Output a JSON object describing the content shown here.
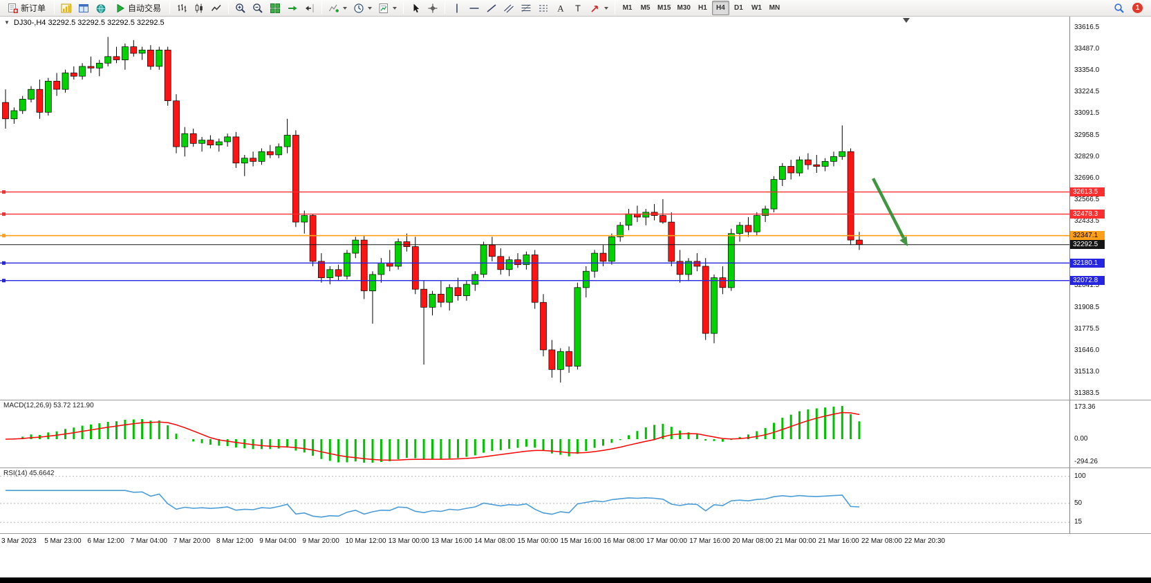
{
  "toolbar": {
    "notification_count": "1",
    "timeframes": [
      "M1",
      "M5",
      "M15",
      "M30",
      "H1",
      "H4",
      "D1",
      "W1",
      "MN"
    ],
    "active_timeframe": "H4",
    "right_icons": [
      "search-icon"
    ],
    "items": [
      {
        "type": "labeled",
        "name": "new-order-button",
        "icon": "new-order-icon",
        "label": "新订单"
      },
      {
        "type": "sep"
      },
      {
        "type": "icon",
        "name": "new-chart-button",
        "icon": "new-chart-icon"
      },
      {
        "type": "icon",
        "name": "profiles-button",
        "icon": "profiles-icon"
      },
      {
        "type": "icon",
        "name": "community-button",
        "icon": "community-icon"
      },
      {
        "type": "labeled",
        "name": "auto-trading-button",
        "icon": "play-icon",
        "label": "自动交易"
      },
      {
        "type": "sep"
      },
      {
        "type": "icon",
        "name": "bar-chart-button",
        "icon": "bar-chart-icon"
      },
      {
        "type": "icon",
        "name": "candlestick-button",
        "icon": "candlestick-icon"
      },
      {
        "type": "icon",
        "name": "line-chart-button",
        "icon": "line-chart-icon"
      },
      {
        "type": "sep"
      },
      {
        "type": "icon",
        "name": "zoom-in-button",
        "icon": "zoom-in-icon"
      },
      {
        "type": "icon",
        "name": "zoom-out-button",
        "icon": "zoom-out-icon"
      },
      {
        "type": "icon",
        "name": "tile-windows-button",
        "icon": "tile-windows-icon"
      },
      {
        "type": "icon",
        "name": "auto-scroll-button",
        "icon": "auto-scroll-icon"
      },
      {
        "type": "icon",
        "name": "chart-shift-button",
        "icon": "chart-shift-icon"
      },
      {
        "type": "sep"
      },
      {
        "type": "dropdown",
        "name": "indicators-button",
        "icon": "indicators-icon"
      },
      {
        "type": "dropdown",
        "name": "periods-button",
        "icon": "clock-icon"
      },
      {
        "type": "dropdown",
        "name": "templates-button",
        "icon": "templates-icon"
      },
      {
        "type": "sep"
      },
      {
        "type": "icon",
        "name": "cursor-button",
        "icon": "cursor-icon"
      },
      {
        "type": "icon",
        "name": "crosshair-button",
        "icon": "crosshair-icon"
      },
      {
        "type": "sep"
      },
      {
        "type": "icon",
        "name": "vertical-line-button",
        "icon": "vertical-line-icon"
      },
      {
        "type": "icon",
        "name": "horizontal-line-button",
        "icon": "horizontal-line-icon"
      },
      {
        "type": "icon",
        "name": "trendline-button",
        "icon": "trendline-icon"
      },
      {
        "type": "icon",
        "name": "channel-button",
        "icon": "channel-icon"
      },
      {
        "type": "icon",
        "name": "fibonacci-button",
        "icon": "fibonacci-icon"
      },
      {
        "type": "icon",
        "name": "levels-button",
        "icon": "levels-icon"
      },
      {
        "type": "icon",
        "name": "text-button",
        "icon": "text-icon"
      },
      {
        "type": "icon",
        "name": "label-button",
        "icon": "label-icon"
      },
      {
        "type": "dropdown",
        "name": "arrows-button",
        "icon": "arrow-icon"
      },
      {
        "type": "sep"
      },
      {
        "type": "timeframes"
      }
    ]
  },
  "chart": {
    "title": "DJ30-,H4 32292.5 32292.5 32292.5 32292.5",
    "symbol": "DJ30-",
    "period": "H4",
    "price_axis_labels": [
      "33616.5",
      "33487.0",
      "33354.0",
      "33224.5",
      "33091.5",
      "32958.5",
      "32829.0",
      "32696.0",
      "32566.5",
      "32433.5",
      "32041.5",
      "31908.5",
      "31775.5",
      "31646.0",
      "31513.0",
      "31383.5"
    ],
    "levels": [
      {
        "value": "32613.5",
        "price": 32613.5,
        "color": "#fb2f2f",
        "tag_fg": "#ffffff",
        "width": 1.4,
        "handle": true
      },
      {
        "value": "32478.3",
        "price": 32478.3,
        "color": "#fb2f2f",
        "tag_fg": "#ffffff",
        "width": 1.4,
        "handle": true
      },
      {
        "value": "32347.1",
        "price": 32347.1,
        "color": "#ff9f1a",
        "tag_fg": "#000000",
        "width": 1.6,
        "handle": true
      },
      {
        "value": "32292.5",
        "price": 32292.5,
        "color": "#161616",
        "tag_fg": "#ffffff",
        "width": 1.0,
        "handle": false
      },
      {
        "value": "32180.1",
        "price": 32180.1,
        "color": "#2525e0",
        "tag_fg": "#ffffff",
        "width": 1.4,
        "handle": true
      },
      {
        "value": "32072.8",
        "price": 32072.8,
        "color": "#2525e0",
        "tag_fg": "#ffffff",
        "width": 1.4,
        "handle": true
      }
    ],
    "arrow_color": "#2e8b2e"
  },
  "chart_data": {
    "type": "candlestick",
    "symbol": "DJ30-",
    "timeframe": "H4",
    "up_color": "#00d300",
    "down_color": "#ff1414",
    "price_range": [
      31383.5,
      33616.5
    ],
    "candles": [
      [
        33160,
        33240,
        33000,
        33060
      ],
      [
        33060,
        33130,
        33030,
        33110
      ],
      [
        33110,
        33200,
        33090,
        33180
      ],
      [
        33180,
        33260,
        33160,
        33240
      ],
      [
        33240,
        33300,
        33060,
        33100
      ],
      [
        33100,
        33310,
        33080,
        33290
      ],
      [
        33290,
        33340,
        33200,
        33240
      ],
      [
        33240,
        33360,
        33220,
        33340
      ],
      [
        33340,
        33380,
        33300,
        33320
      ],
      [
        33320,
        33400,
        33300,
        33380
      ],
      [
        33380,
        33440,
        33340,
        33370
      ],
      [
        33370,
        33420,
        33320,
        33400
      ],
      [
        33400,
        33560,
        33380,
        33440
      ],
      [
        33440,
        33500,
        33400,
        33420
      ],
      [
        33420,
        33520,
        33360,
        33500
      ],
      [
        33500,
        33540,
        33440,
        33460
      ],
      [
        33460,
        33500,
        33420,
        33480
      ],
      [
        33480,
        33510,
        33360,
        33380
      ],
      [
        33380,
        33500,
        33360,
        33480
      ],
      [
        33480,
        33500,
        33140,
        33170
      ],
      [
        33170,
        33210,
        32850,
        32890
      ],
      [
        32890,
        33010,
        32830,
        32970
      ],
      [
        32970,
        33000,
        32890,
        32910
      ],
      [
        32910,
        32950,
        32860,
        32930
      ],
      [
        32930,
        32960,
        32880,
        32900
      ],
      [
        32900,
        32940,
        32860,
        32920
      ],
      [
        32920,
        32970,
        32890,
        32950
      ],
      [
        32950,
        32980,
        32760,
        32790
      ],
      [
        32790,
        32840,
        32710,
        32820
      ],
      [
        32820,
        32860,
        32770,
        32800
      ],
      [
        32800,
        32880,
        32780,
        32860
      ],
      [
        32860,
        32900,
        32820,
        32840
      ],
      [
        32840,
        32910,
        32820,
        32890
      ],
      [
        32890,
        33060,
        32850,
        32960
      ],
      [
        32960,
        32990,
        32400,
        32430
      ],
      [
        32430,
        32500,
        32360,
        32470
      ],
      [
        32470,
        32480,
        32160,
        32190
      ],
      [
        32190,
        32240,
        32060,
        32090
      ],
      [
        32090,
        32160,
        32050,
        32140
      ],
      [
        32140,
        32170,
        32070,
        32100
      ],
      [
        32100,
        32260,
        32080,
        32240
      ],
      [
        32240,
        32340,
        32210,
        32320
      ],
      [
        32320,
        32350,
        31960,
        32010
      ],
      [
        32010,
        32130,
        31810,
        32110
      ],
      [
        32110,
        32210,
        32060,
        32180
      ],
      [
        32180,
        32260,
        32130,
        32160
      ],
      [
        32160,
        32330,
        32140,
        32310
      ],
      [
        32310,
        32360,
        32250,
        32280
      ],
      [
        32280,
        32340,
        31990,
        32020
      ],
      [
        32020,
        32070,
        31560,
        31910
      ],
      [
        31910,
        32010,
        31860,
        31990
      ],
      [
        31990,
        32070,
        31910,
        31940
      ],
      [
        31940,
        32050,
        31890,
        32030
      ],
      [
        32030,
        32090,
        31950,
        31980
      ],
      [
        31980,
        32070,
        31950,
        32050
      ],
      [
        32050,
        32130,
        32010,
        32110
      ],
      [
        32110,
        32310,
        32090,
        32290
      ],
      [
        32290,
        32340,
        32190,
        32220
      ],
      [
        32220,
        32270,
        32110,
        32140
      ],
      [
        32140,
        32220,
        32100,
        32200
      ],
      [
        32200,
        32240,
        32150,
        32170
      ],
      [
        32170,
        32250,
        32140,
        32230
      ],
      [
        32230,
        32260,
        31900,
        31940
      ],
      [
        31940,
        31990,
        31610,
        31650
      ],
      [
        31650,
        31710,
        31480,
        31530
      ],
      [
        31530,
        31660,
        31450,
        31640
      ],
      [
        31640,
        31670,
        31510,
        31550
      ],
      [
        31550,
        32060,
        31530,
        32030
      ],
      [
        32030,
        32160,
        31970,
        32130
      ],
      [
        32130,
        32260,
        32090,
        32240
      ],
      [
        32240,
        32290,
        32160,
        32190
      ],
      [
        32190,
        32360,
        32170,
        32340
      ],
      [
        32340,
        32430,
        32310,
        32410
      ],
      [
        32410,
        32510,
        32380,
        32480
      ],
      [
        32480,
        32530,
        32430,
        32460
      ],
      [
        32460,
        32510,
        32410,
        32490
      ],
      [
        32490,
        32540,
        32440,
        32470
      ],
      [
        32470,
        32570,
        32420,
        32430
      ],
      [
        32430,
        32490,
        32160,
        32190
      ],
      [
        32190,
        32260,
        32060,
        32110
      ],
      [
        32110,
        32210,
        32070,
        32190
      ],
      [
        32190,
        32240,
        32130,
        32160
      ],
      [
        32160,
        32210,
        31710,
        31750
      ],
      [
        31750,
        32110,
        31690,
        32090
      ],
      [
        32090,
        32160,
        31990,
        32030
      ],
      [
        32030,
        32390,
        32010,
        32360
      ],
      [
        32360,
        32430,
        32310,
        32410
      ],
      [
        32410,
        32460,
        32340,
        32370
      ],
      [
        32370,
        32490,
        32350,
        32470
      ],
      [
        32470,
        32530,
        32430,
        32510
      ],
      [
        32510,
        32710,
        32490,
        32690
      ],
      [
        32690,
        32790,
        32650,
        32770
      ],
      [
        32770,
        32810,
        32690,
        32730
      ],
      [
        32730,
        32830,
        32710,
        32810
      ],
      [
        32810,
        32850,
        32750,
        32780
      ],
      [
        32780,
        32840,
        32730,
        32770
      ],
      [
        32770,
        32820,
        32740,
        32800
      ],
      [
        32800,
        32860,
        32770,
        32830
      ],
      [
        32830,
        33020,
        32810,
        32860
      ],
      [
        32860,
        32880,
        32290,
        32320
      ],
      [
        32320,
        32370,
        32260,
        32292.5
      ]
    ]
  },
  "macd": {
    "label": "MACD(12,26,9) 53.72 121.90",
    "params": [
      12,
      26,
      9
    ],
    "axis_labels": [
      "173.36",
      "0.00",
      "-294.26"
    ],
    "histogram_color": "#00c000",
    "signal_color": "#ff0000"
  },
  "rsi": {
    "label": "RSI(14) 45.6642",
    "value": "45.6642",
    "axis_labels": [
      "100",
      "50",
      "15"
    ],
    "axis_levels": [
      100,
      50,
      15
    ],
    "line_color": "#4a9bd8"
  },
  "time_axis": [
    "3 Mar 2023",
    "5 Mar 23:00",
    "6 Mar 12:00",
    "7 Mar 04:00",
    "7 Mar 20:00",
    "8 Mar 12:00",
    "9 Mar 04:00",
    "9 Mar 20:00",
    "10 Mar 12:00",
    "13 Mar 00:00",
    "13 Mar 16:00",
    "14 Mar 08:00",
    "15 Mar 00:00",
    "15 Mar 16:00",
    "16 Mar 08:00",
    "17 Mar 00:00",
    "17 Mar 16:00",
    "20 Mar 08:00",
    "21 Mar 00:00",
    "21 Mar 16:00",
    "22 Mar 08:00",
    "22 Mar 20:30"
  ]
}
